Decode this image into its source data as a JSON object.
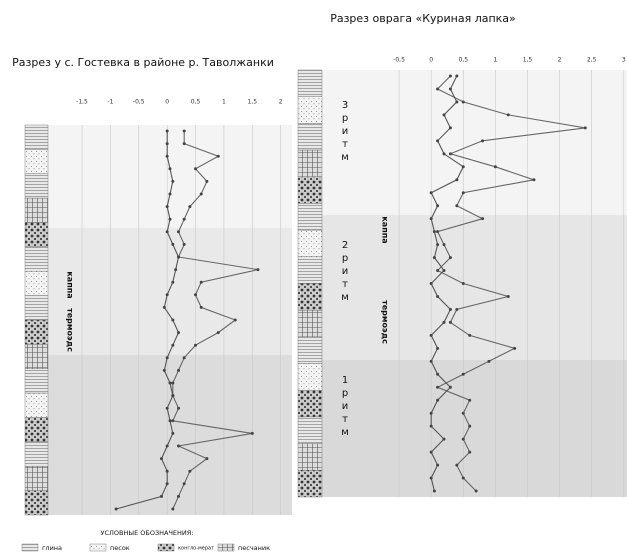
{
  "chart_data": [
    {
      "type": "line",
      "title": "Разрез у с. Гостевка в районе р. Таволжанки",
      "xlim": [
        -2.1,
        2.2
      ],
      "xticks": [
        {
          "value": -1.5,
          "label": "-1,5"
        },
        -1,
        {
          "value": -0.5,
          "label": "-0,5"
        },
        0,
        {
          "value": 0.5,
          "label": "0,5"
        },
        1,
        {
          "value": 1.5,
          "label": "1,5"
        },
        2
      ],
      "series": [
        {
          "name": "термоэдс",
          "color": "#666",
          "values": [
            0.3,
            0.3,
            0.9,
            0.5,
            0.7,
            0.6,
            0.4,
            0.3,
            0.2,
            0.3,
            0.2,
            1.6,
            0.6,
            0.5,
            0.6,
            1.2,
            0.9,
            0.5,
            0.3,
            0.2,
            0.1,
            0.1,
            0.2,
            0.1,
            1.5,
            0.2,
            0.7,
            0.4,
            0.3,
            0.2,
            0.1
          ]
        },
        {
          "name": "каппа",
          "color": "#555",
          "values": [
            0,
            0,
            0,
            0.05,
            0.1,
            0.05,
            0,
            0.05,
            0,
            0.1,
            0.2,
            0.15,
            0.1,
            0,
            -0.05,
            0.1,
            0.2,
            0.1,
            0,
            -0.05,
            0.05,
            0.1,
            0,
            0.05,
            0.1,
            0,
            -0.1,
            0,
            0,
            -0.1,
            -0.9
          ]
        }
      ]
    },
    {
      "type": "line",
      "title": "Разрез  оврага «Куриная лапка»",
      "xlim": [
        -1.7,
        3.05
      ],
      "xticks": [
        {
          "value": -0.5,
          "label": "-0,5"
        },
        0,
        {
          "value": 0.5,
          "label": "0,5"
        },
        1,
        {
          "value": 1.5,
          "label": "1,5"
        },
        2,
        {
          "value": 2.5,
          "label": "2,5"
        },
        3
      ],
      "rhythms": [
        {
          "number": "3",
          "word": "ритм"
        },
        {
          "number": "2",
          "word": "ритм"
        },
        {
          "number": "1",
          "word": "ритм"
        }
      ],
      "series": [
        {
          "name": "термоэдс",
          "color": "#666",
          "values": [
            0.3,
            0.1,
            0.5,
            1.2,
            2.4,
            0.8,
            0.3,
            1.0,
            1.6,
            0.5,
            0.4,
            0.8,
            0.1,
            0.2,
            0.3,
            0.1,
            0.5,
            1.2,
            0.4,
            0.3,
            0.6,
            1.3,
            0.9,
            0.5,
            0.1,
            0.6,
            0.5,
            0.6,
            0.5,
            0.6,
            0.4,
            0.5,
            0.7
          ]
        },
        {
          "name": "каппа",
          "color": "#555",
          "values": [
            0.4,
            0.3,
            0.4,
            0.2,
            0.3,
            0.1,
            0.2,
            0.5,
            0.4,
            0,
            0.1,
            0,
            0.05,
            0.1,
            0.05,
            0.2,
            0,
            0.1,
            0.3,
            0.2,
            0,
            0.1,
            0,
            0.1,
            0.3,
            0.1,
            0,
            0,
            0.2,
            0,
            0.1,
            0,
            0.05
          ]
        }
      ]
    }
  ],
  "legend": {
    "title": "УСЛОВНЫЕ ОБОЗНАЧЕНИЯ:",
    "items": [
      "глина",
      "песок",
      "конгло-мерат",
      "песчаник"
    ]
  }
}
